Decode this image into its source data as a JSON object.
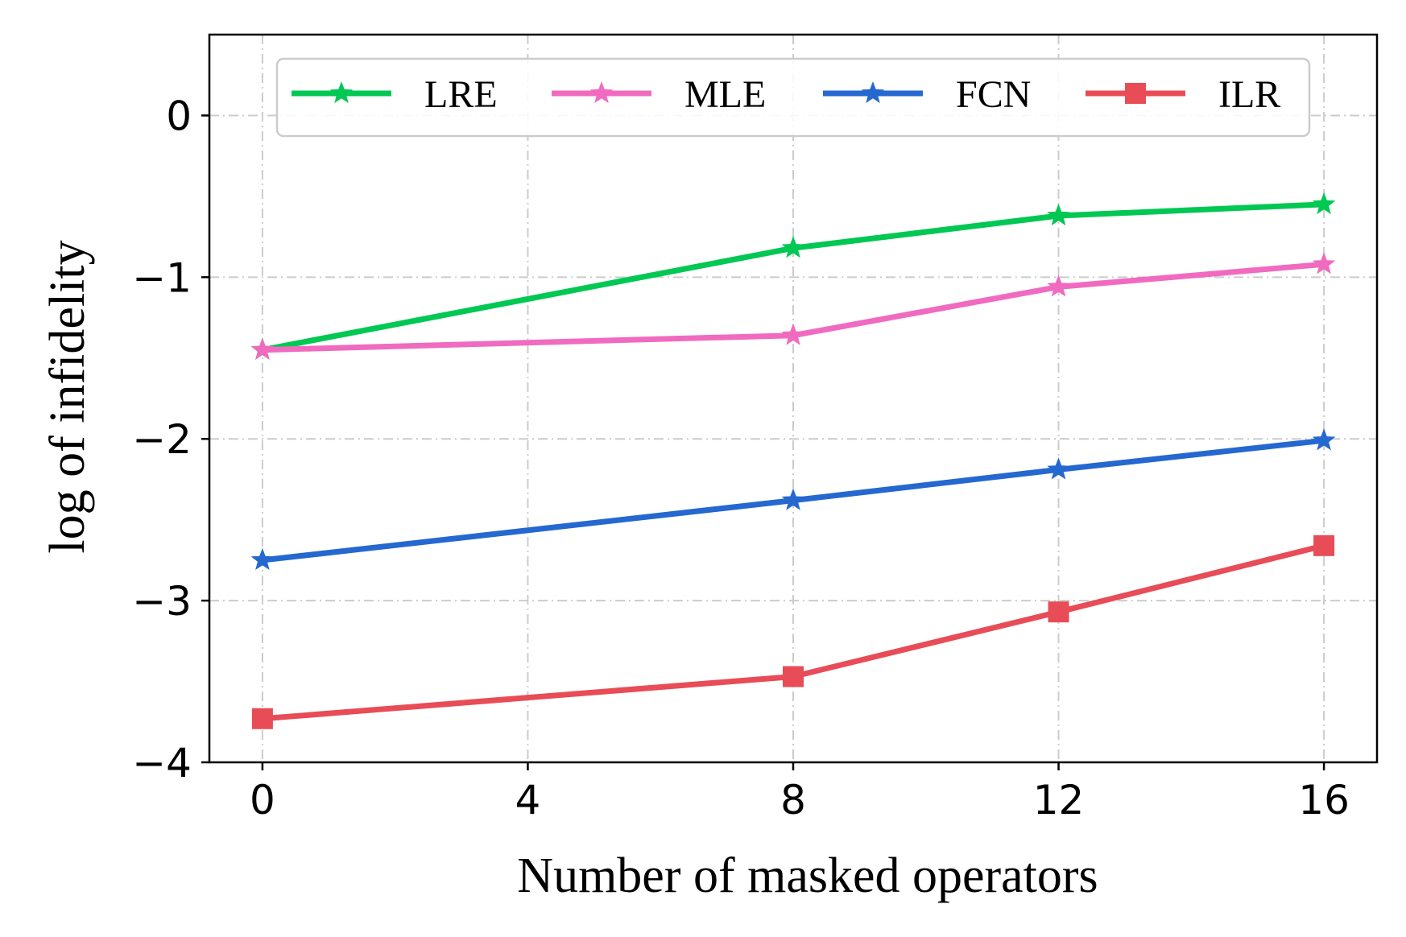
{
  "chart_data": {
    "type": "line",
    "title": "",
    "xlabel": "Number of masked operators",
    "ylabel": "log of infidelity",
    "x": [
      0,
      8,
      12,
      16
    ],
    "xlim": [
      -0.8,
      16.8
    ],
    "ylim": [
      -4,
      0.5
    ],
    "xticks": [
      0,
      4,
      8,
      12,
      16
    ],
    "xtick_labels": [
      "0",
      "4",
      "8",
      "12",
      "16"
    ],
    "yticks": [
      0,
      -1,
      -2,
      -3,
      -4
    ],
    "ytick_labels": [
      "0",
      "−1",
      "−2",
      "−3",
      "−4"
    ],
    "grid": true,
    "legend_position": "top",
    "series": [
      {
        "name": "LRE",
        "color": "#00c853",
        "marker": "star",
        "values": [
          -1.45,
          -0.82,
          -0.62,
          -0.55
        ]
      },
      {
        "name": "MLE",
        "color": "#f06bc0",
        "marker": "star",
        "values": [
          -1.45,
          -1.36,
          -1.06,
          -0.92
        ]
      },
      {
        "name": "FCN",
        "color": "#2468d0",
        "marker": "star",
        "values": [
          -2.75,
          -2.38,
          -2.19,
          -2.01
        ]
      },
      {
        "name": "ILR",
        "color": "#e84c57",
        "marker": "square",
        "values": [
          -3.73,
          -3.47,
          -3.07,
          -2.66
        ]
      }
    ]
  }
}
